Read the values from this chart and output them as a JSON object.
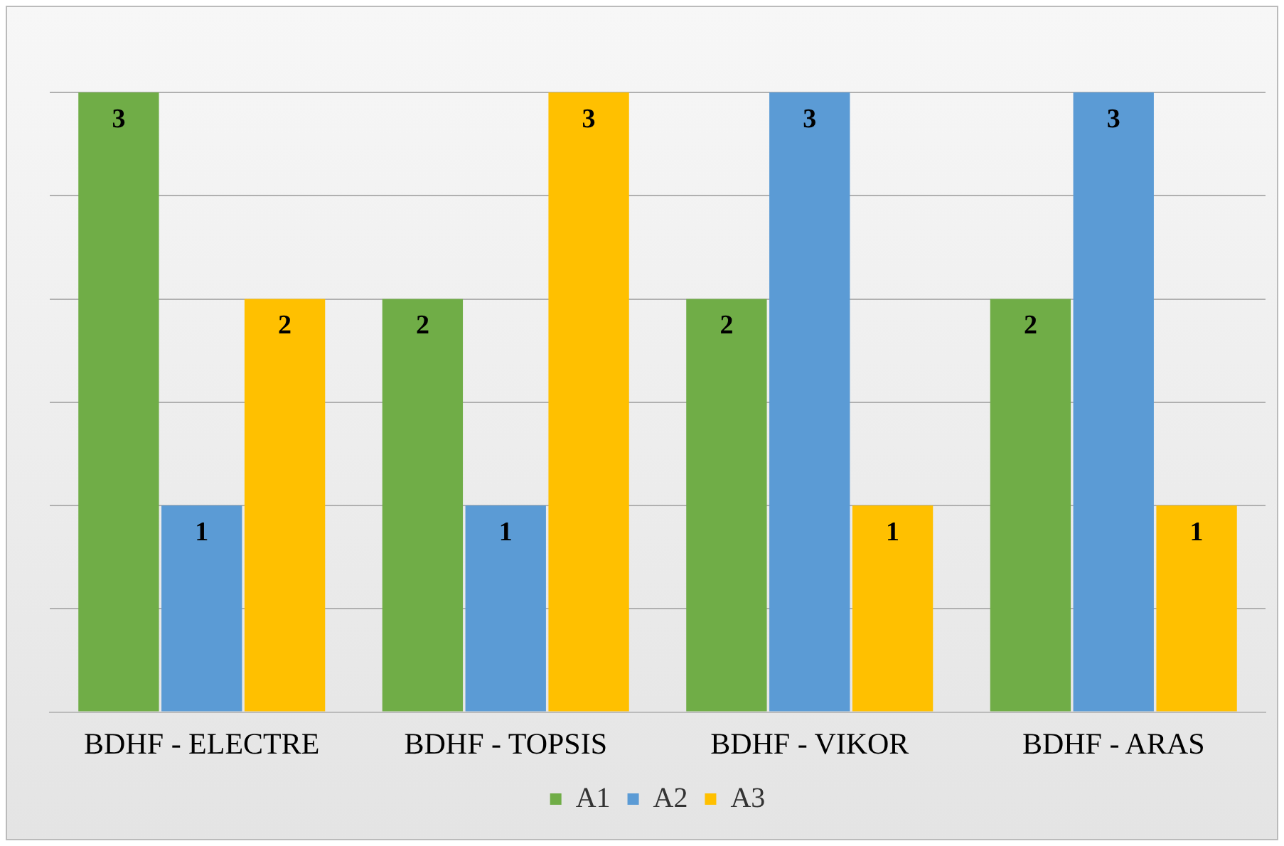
{
  "chart_data": {
    "type": "bar",
    "categories": [
      "BDHF - ELECTRE",
      "BDHF - TOPSIS",
      "BDHF - VIKOR",
      "BDHF - ARAS"
    ],
    "series": [
      {
        "name": "A1",
        "color": "#70ad47",
        "values": [
          3,
          2,
          2,
          2
        ]
      },
      {
        "name": "A2",
        "color": "#5b9bd5",
        "values": [
          1,
          1,
          3,
          3
        ]
      },
      {
        "name": "A3",
        "color": "#ffc000",
        "values": [
          2,
          3,
          1,
          1
        ]
      }
    ],
    "ylim": [
      0,
      3
    ],
    "yticks": [
      0,
      {
        "value": 0.5,
        "label": null
      },
      {
        "value": 1,
        "label": null
      },
      {
        "value": 1.5,
        "label": null
      },
      {
        "value": 2,
        "label": null
      },
      {
        "value": 2.5,
        "label": null
      },
      {
        "value": 3,
        "label": null
      }
    ],
    "tick_labels": "x",
    "grid": "y",
    "legend": "bottom",
    "data_labels": true
  }
}
